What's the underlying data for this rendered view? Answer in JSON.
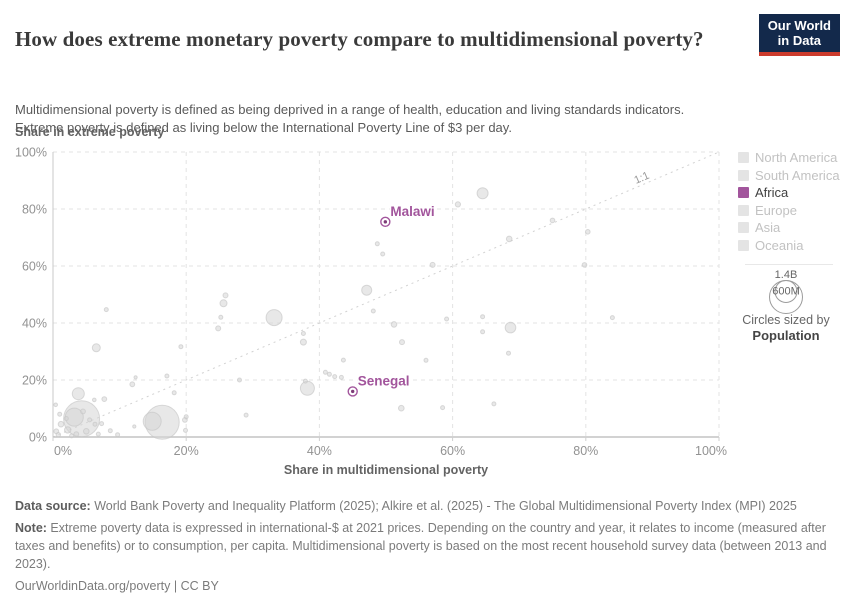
{
  "colors": {
    "accent": "#a2559c",
    "accent_dark": "#7d3c78",
    "point_fill": "#d6d6d6",
    "point_stroke": "#c6c6c6",
    "grid": "#e3e3e3",
    "axis": "#c9c9c9",
    "diagonal": "#d2d2d2",
    "tick_text": "#929292",
    "logo_bg": "#13294b",
    "logo_red": "#cc3b2d",
    "legend_inactive_swatch": "#e4e4e4",
    "legend_inactive_text": "#c2c2c2"
  },
  "header": {
    "title": "How does extreme monetary poverty compare to multidimensional poverty?",
    "subtitle_lines": [
      "Multidimensional poverty is defined as being deprived in a range of health, education and living standards indicators.",
      "Extreme poverty is defined as living below the International Poverty Line of $3 per day."
    ],
    "logo_line1": "Our World",
    "logo_line2": "in Data"
  },
  "chart_data": {
    "type": "scatter",
    "xlabel": "Share in multidimensional poverty",
    "ylabel": "Share in extreme poverty",
    "xlim": [
      0,
      100
    ],
    "ylim": [
      0,
      100
    ],
    "grid": true,
    "x_tick_values": [
      0,
      20,
      40,
      60,
      80,
      100
    ],
    "x_tick_labels": [
      "0%",
      "20%",
      "40%",
      "60%",
      "80%",
      "100%"
    ],
    "y_tick_values": [
      0,
      20,
      40,
      60,
      80,
      100
    ],
    "y_tick_labels": [
      "0%",
      "20%",
      "40%",
      "60%",
      "80%",
      "100%"
    ],
    "diagonal_label": "1:1",
    "highlighted_points": [
      {
        "name": "Malawi",
        "x": 49.9,
        "y": 75.5
      },
      {
        "name": "Senegal",
        "x": 45.0,
        "y": 16.0
      }
    ],
    "points": [
      [
        64.5,
        85.5,
        5.5
      ],
      [
        60.8,
        81.6,
        2.6
      ],
      [
        75,
        76,
        2.3
      ],
      [
        80.3,
        72,
        2.3
      ],
      [
        68.5,
        69.5,
        2.8
      ],
      [
        48.7,
        67.8,
        2
      ],
      [
        49.5,
        64.2,
        2
      ],
      [
        57,
        60.4,
        2.5
      ],
      [
        79.8,
        60.4,
        2.3
      ],
      [
        47.1,
        51.5,
        5
      ],
      [
        25.9,
        49.7,
        2.5
      ],
      [
        25.6,
        46.9,
        3.5
      ],
      [
        8,
        44.7,
        2
      ],
      [
        48.1,
        44.2,
        2
      ],
      [
        64.5,
        42.2,
        2
      ],
      [
        84,
        41.9,
        2
      ],
      [
        33.2,
        41.9,
        8
      ],
      [
        25.2,
        42,
        2
      ],
      [
        59.1,
        41.4,
        2
      ],
      [
        51.2,
        39.5,
        2.8
      ],
      [
        68.7,
        38.4,
        5.3
      ],
      [
        24.8,
        38.1,
        2.5
      ],
      [
        64.5,
        36.9,
        2
      ],
      [
        37.6,
        36.3,
        2
      ],
      [
        37.6,
        33.3,
        3
      ],
      [
        52.4,
        33.3,
        2.5
      ],
      [
        19.2,
        31.7,
        2
      ],
      [
        6.5,
        31.3,
        4
      ],
      [
        68.4,
        29.4,
        2
      ],
      [
        43.6,
        27,
        2
      ],
      [
        56,
        26.9,
        2
      ],
      [
        40.9,
        22.7,
        2
      ],
      [
        41.5,
        22,
        2
      ],
      [
        42.3,
        21.2,
        2
      ],
      [
        43.3,
        20.9,
        2
      ],
      [
        17.1,
        21.4,
        2
      ],
      [
        12.4,
        20.9,
        1.6
      ],
      [
        28,
        20,
        2
      ],
      [
        37.9,
        19.6,
        2
      ],
      [
        11.9,
        18.5,
        2.4
      ],
      [
        38.2,
        17.1,
        7
      ],
      [
        18.2,
        15.5,
        2
      ],
      [
        3.8,
        15.2,
        6
      ],
      [
        7.7,
        13.3,
        2.4
      ],
      [
        6.2,
        13,
        1.8
      ],
      [
        0.4,
        11.3,
        1.8
      ],
      [
        66.2,
        11.6,
        2
      ],
      [
        58.5,
        10.3,
        2
      ],
      [
        52.3,
        10.1,
        2.8
      ],
      [
        4.5,
        9,
        2.4
      ],
      [
        29,
        7.7,
        2
      ],
      [
        20,
        7.1,
        2
      ],
      [
        3.2,
        7,
        9
      ],
      [
        1,
        8,
        2
      ],
      [
        7.3,
        4.7,
        2
      ],
      [
        19.8,
        6,
        2.4
      ],
      [
        16.4,
        5.2,
        17
      ],
      [
        14.9,
        5.5,
        9
      ],
      [
        4.3,
        6.4,
        18
      ],
      [
        2,
        6.5,
        2
      ],
      [
        5.5,
        6,
        2
      ],
      [
        6.3,
        4.5,
        2
      ],
      [
        1.2,
        4.5,
        2.8
      ],
      [
        12.2,
        3.7,
        1.6
      ],
      [
        2.2,
        2.5,
        3.2
      ],
      [
        5,
        2,
        2.8
      ],
      [
        8.6,
        2.2,
        2
      ],
      [
        3.5,
        1,
        2.4
      ],
      [
        0.8,
        0.8,
        2.2
      ],
      [
        6.8,
        1,
        2
      ],
      [
        19.9,
        2.3,
        2
      ],
      [
        9.7,
        0.8,
        2
      ],
      [
        2.8,
        0.4,
        2
      ],
      [
        0.5,
        2,
        2.4
      ]
    ]
  },
  "legend": {
    "items": [
      {
        "label": "North America",
        "active": false
      },
      {
        "label": "South America",
        "active": false
      },
      {
        "label": "Africa",
        "active": true
      },
      {
        "label": "Europe",
        "active": false
      },
      {
        "label": "Asia",
        "active": false
      },
      {
        "label": "Oceania",
        "active": false
      }
    ],
    "size_legend": {
      "large_label": "1.4B",
      "small_label": "600M",
      "caption_line1": "Circles sized by",
      "caption_line2": "Population"
    }
  },
  "footer": {
    "data_source_label": "Data source:",
    "data_source_text": " World Bank Poverty and Inequality Platform (2025); Alkire et al. (2025) - The Global Multidimensional Poverty Index (MPI) 2025",
    "note_label": "Note:",
    "note_text": " Extreme poverty data is expressed in international-$ at 2021 prices. Depending on the country and year, it relates to income (measured after taxes and benefits) or to consumption, per capita. Multidimensional poverty is based on the most recent household survey data (between 2013 and 2023).",
    "citation": "OurWorldinData.org/poverty | CC BY"
  }
}
